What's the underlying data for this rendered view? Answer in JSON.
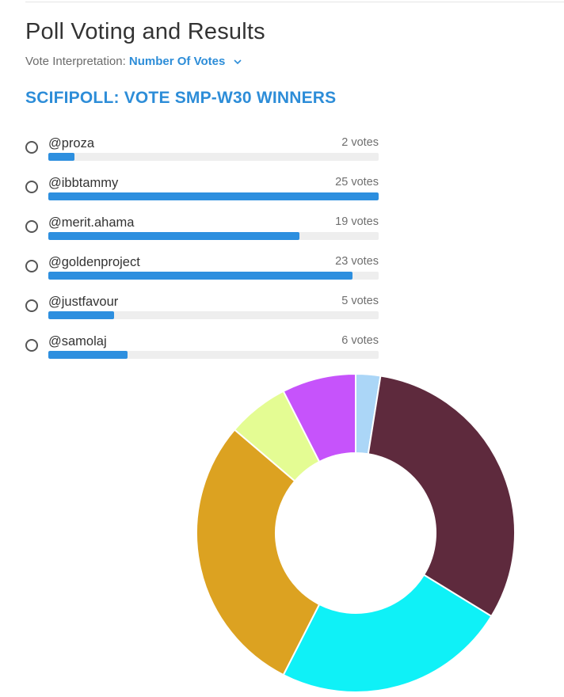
{
  "header": {
    "title": "Poll Voting and Results",
    "interpretation_label": "Vote Interpretation: ",
    "interpretation_value": "Number Of Votes"
  },
  "poll": {
    "title": "SCIFIPOLL: VOTE SMP-W30 WINNERS",
    "options": [
      {
        "name": "@proza",
        "votes": 2,
        "votes_label": "2 votes",
        "color": "#abd6f7"
      },
      {
        "name": "@ibbtammy",
        "votes": 25,
        "votes_label": "25 votes",
        "color": "#5e2a3d"
      },
      {
        "name": "@merit.ahama",
        "votes": 19,
        "votes_label": "19 votes",
        "color": "#0ff1f7"
      },
      {
        "name": "@goldenproject",
        "votes": 23,
        "votes_label": "23 votes",
        "color": "#dca221"
      },
      {
        "name": "@justfavour",
        "votes": 5,
        "votes_label": "5 votes",
        "color": "#e4fc93"
      },
      {
        "name": "@samolaj",
        "votes": 6,
        "votes_label": "6 votes",
        "color": "#c653fb"
      }
    ]
  },
  "colors": {
    "accent": "#2d8dd8",
    "bar_fill": "#2d8fdf",
    "bar_track": "#eeeeee"
  },
  "icons": {
    "dropdown": "chevron-down-icon",
    "option_selector": "radio-icon"
  },
  "chart_data": {
    "type": "pie",
    "categories": [
      "@proza",
      "@ibbtammy",
      "@merit.ahama",
      "@goldenproject",
      "@justfavour",
      "@samolaj"
    ],
    "values": [
      2,
      25,
      19,
      23,
      5,
      6
    ],
    "colors": [
      "#abd6f7",
      "#5e2a3d",
      "#0ff1f7",
      "#dca221",
      "#e4fc93",
      "#c653fb"
    ],
    "donut": true,
    "title": "",
    "legend": "none"
  }
}
